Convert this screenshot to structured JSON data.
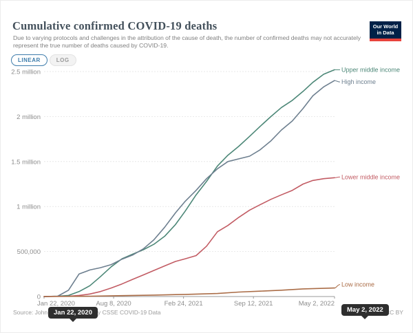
{
  "header": {
    "title": "Cumulative confirmed COVID-19 deaths",
    "subtitle": "Due to varying protocols and challenges in the attribution of the cause of death, the number of confirmed deaths may not accurately represent the true number of deaths caused by COVID-19.",
    "logo": {
      "line1": "Our World",
      "line2": "in Data",
      "bg_color": "#002147",
      "accent_color": "#e8433c"
    }
  },
  "controls": {
    "linear_label": "LINEAR",
    "log_label": "LOG",
    "active_scale": "LINEAR",
    "accent_color": "#3d7cab"
  },
  "chart_data": {
    "type": "line",
    "title": "Cumulative confirmed COVID-19 deaths",
    "xlabel": "",
    "ylabel": "",
    "grid": true,
    "legend_position": "right-end-labels",
    "x_range": [
      "2020-01-22",
      "2022-05-02"
    ],
    "ylim": [
      0,
      2500000
    ],
    "y_ticks": [
      {
        "value": 0,
        "label": "0"
      },
      {
        "value": 500000,
        "label": "500,000"
      },
      {
        "value": 1000000,
        "label": "1 million"
      },
      {
        "value": 1500000,
        "label": "1.5 million"
      },
      {
        "value": 2000000,
        "label": "2 million"
      },
      {
        "value": 2500000,
        "label": "2.5 million"
      }
    ],
    "x_ticks": [
      {
        "date": "2020-01-22",
        "label": "Jan 22, 2020"
      },
      {
        "date": "2020-08-08",
        "label": "Aug 8, 2020"
      },
      {
        "date": "2021-02-24",
        "label": "Feb 24, 2021"
      },
      {
        "date": "2021-09-12",
        "label": "Sep 12, 2021"
      },
      {
        "date": "2022-05-02",
        "label": "May 2, 2022"
      }
    ],
    "series": [
      {
        "name": "Upper middle income",
        "color": "#4c8777",
        "points": [
          [
            "2020-01-22",
            0
          ],
          [
            "2020-03-01",
            3000
          ],
          [
            "2020-04-01",
            12000
          ],
          [
            "2020-05-01",
            55000
          ],
          [
            "2020-06-01",
            120000
          ],
          [
            "2020-07-01",
            220000
          ],
          [
            "2020-08-01",
            330000
          ],
          [
            "2020-09-01",
            420000
          ],
          [
            "2020-10-01",
            470000
          ],
          [
            "2020-11-01",
            520000
          ],
          [
            "2020-12-01",
            580000
          ],
          [
            "2021-01-01",
            670000
          ],
          [
            "2021-02-01",
            800000
          ],
          [
            "2021-03-01",
            950000
          ],
          [
            "2021-04-01",
            1130000
          ],
          [
            "2021-05-01",
            1280000
          ],
          [
            "2021-06-01",
            1450000
          ],
          [
            "2021-07-01",
            1570000
          ],
          [
            "2021-08-01",
            1670000
          ],
          [
            "2021-09-01",
            1780000
          ],
          [
            "2021-10-01",
            1890000
          ],
          [
            "2021-11-01",
            2000000
          ],
          [
            "2021-12-01",
            2100000
          ],
          [
            "2022-01-01",
            2180000
          ],
          [
            "2022-02-01",
            2280000
          ],
          [
            "2022-03-01",
            2380000
          ],
          [
            "2022-04-01",
            2470000
          ],
          [
            "2022-05-02",
            2520000
          ]
        ]
      },
      {
        "name": "High income",
        "color": "#6d7f8f",
        "points": [
          [
            "2020-01-22",
            0
          ],
          [
            "2020-03-01",
            4000
          ],
          [
            "2020-04-01",
            70000
          ],
          [
            "2020-05-01",
            250000
          ],
          [
            "2020-06-01",
            295000
          ],
          [
            "2020-07-01",
            320000
          ],
          [
            "2020-08-01",
            355000
          ],
          [
            "2020-09-01",
            415000
          ],
          [
            "2020-10-01",
            460000
          ],
          [
            "2020-11-01",
            530000
          ],
          [
            "2020-12-01",
            630000
          ],
          [
            "2021-01-01",
            770000
          ],
          [
            "2021-02-01",
            930000
          ],
          [
            "2021-03-01",
            1060000
          ],
          [
            "2021-04-01",
            1180000
          ],
          [
            "2021-05-01",
            1310000
          ],
          [
            "2021-06-01",
            1420000
          ],
          [
            "2021-07-01",
            1500000
          ],
          [
            "2021-08-01",
            1530000
          ],
          [
            "2021-09-01",
            1560000
          ],
          [
            "2021-10-01",
            1630000
          ],
          [
            "2021-11-01",
            1730000
          ],
          [
            "2021-12-01",
            1850000
          ],
          [
            "2022-01-01",
            1950000
          ],
          [
            "2022-02-01",
            2090000
          ],
          [
            "2022-03-01",
            2230000
          ],
          [
            "2022-04-01",
            2330000
          ],
          [
            "2022-05-02",
            2400000
          ]
        ]
      },
      {
        "name": "Lower middle income",
        "color": "#c25b63",
        "points": [
          [
            "2020-01-22",
            0
          ],
          [
            "2020-04-01",
            4000
          ],
          [
            "2020-05-01",
            12000
          ],
          [
            "2020-06-01",
            28000
          ],
          [
            "2020-07-01",
            55000
          ],
          [
            "2020-08-01",
            95000
          ],
          [
            "2020-09-01",
            140000
          ],
          [
            "2020-10-01",
            190000
          ],
          [
            "2020-11-01",
            240000
          ],
          [
            "2020-12-01",
            290000
          ],
          [
            "2021-01-01",
            340000
          ],
          [
            "2021-02-01",
            390000
          ],
          [
            "2021-03-01",
            420000
          ],
          [
            "2021-04-01",
            455000
          ],
          [
            "2021-05-01",
            560000
          ],
          [
            "2021-06-01",
            720000
          ],
          [
            "2021-07-01",
            790000
          ],
          [
            "2021-08-01",
            880000
          ],
          [
            "2021-09-01",
            960000
          ],
          [
            "2021-10-01",
            1020000
          ],
          [
            "2021-11-01",
            1080000
          ],
          [
            "2021-12-01",
            1130000
          ],
          [
            "2022-01-01",
            1180000
          ],
          [
            "2022-02-01",
            1250000
          ],
          [
            "2022-03-01",
            1290000
          ],
          [
            "2022-04-01",
            1310000
          ],
          [
            "2022-05-02",
            1320000
          ]
        ]
      },
      {
        "name": "Low income",
        "color": "#aa6c46",
        "points": [
          [
            "2020-01-22",
            0
          ],
          [
            "2020-06-01",
            4000
          ],
          [
            "2020-09-01",
            10000
          ],
          [
            "2020-12-01",
            16000
          ],
          [
            "2021-03-01",
            24000
          ],
          [
            "2021-06-01",
            34000
          ],
          [
            "2021-08-01",
            50000
          ],
          [
            "2021-10-01",
            60000
          ],
          [
            "2021-12-01",
            70000
          ],
          [
            "2022-02-01",
            85000
          ],
          [
            "2022-05-02",
            95000
          ]
        ]
      }
    ]
  },
  "timeline": {
    "start_handle": "Jan 22, 2020",
    "end_handle": "May 2, 2022"
  },
  "footer": {
    "source": "Source: Johns Hopkins University CSSE COVID-19 Data",
    "license": "CC BY"
  }
}
